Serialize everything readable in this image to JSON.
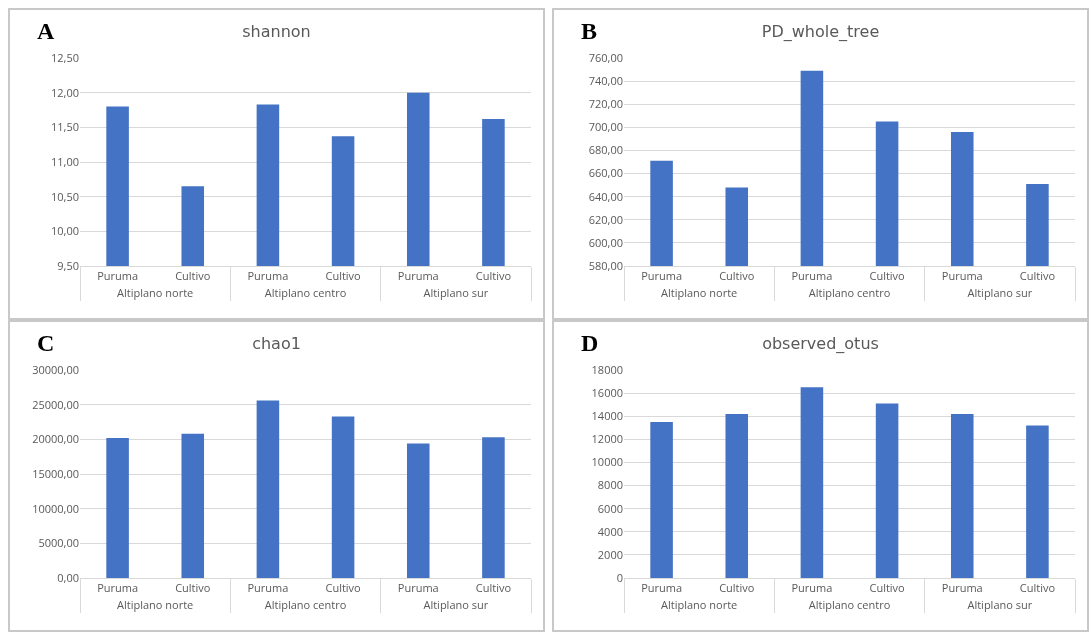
{
  "chart_data": [
    {
      "type": "bar",
      "title": "shannon",
      "annotations": [
        "A",
        "Altiplano norte",
        "Altiplano centro",
        "Altiplano sur"
      ],
      "categories": [
        "Puruma",
        "Cultivo",
        "Puruma",
        "Cultivo",
        "Puruma",
        "Cultivo"
      ],
      "values": [
        11.8,
        10.65,
        11.83,
        11.37,
        12.0,
        11.62
      ],
      "color": "#4472c4",
      "ylim": [
        9.5,
        12.5
      ],
      "yticks": [
        {
          "value": 9.5,
          "label": "9,50"
        },
        {
          "value": 10,
          "label": "10,00"
        },
        {
          "value": 10.5,
          "label": "10,50"
        },
        {
          "value": 11,
          "label": "11,00"
        },
        {
          "value": 11.5,
          "label": "11,50"
        },
        {
          "value": 12,
          "label": "12,00"
        },
        {
          "value": 12.5,
          "label": "12,50"
        }
      ],
      "grid": "y"
    },
    {
      "type": "bar",
      "title": "PD_whole_tree",
      "annotations": [
        "B",
        "Altiplano norte",
        "Altiplano centro",
        "Altiplano sur"
      ],
      "categories": [
        "Puruma",
        "Cultivo",
        "Puruma",
        "Cultivo",
        "Puruma",
        "Cultivo"
      ],
      "values": [
        671,
        648,
        749,
        705,
        696,
        651
      ],
      "color": "#4472c4",
      "ylim": [
        580,
        760
      ],
      "yticks": [
        {
          "value": 580,
          "label": "580,00"
        },
        {
          "value": 600,
          "label": "600,00"
        },
        {
          "value": 620,
          "label": "620,00"
        },
        {
          "value": 640,
          "label": "640,00"
        },
        {
          "value": 660,
          "label": "660,00"
        },
        {
          "value": 680,
          "label": "680,00"
        },
        {
          "value": 700,
          "label": "700,00"
        },
        {
          "value": 720,
          "label": "720,00"
        },
        {
          "value": 740,
          "label": "740,00"
        },
        {
          "value": 760,
          "label": "760,00"
        }
      ],
      "grid": "y"
    },
    {
      "type": "bar",
      "title": "chao1",
      "annotations": [
        "C",
        "Altiplano norte",
        "Altiplano centro",
        "Altiplano sur"
      ],
      "categories": [
        "Puruma",
        "Cultivo",
        "Puruma",
        "Cultivo",
        "Puruma",
        "Cultivo"
      ],
      "values": [
        20200,
        20800,
        25600,
        23300,
        19400,
        20300
      ],
      "color": "#4472c4",
      "ylim": [
        0,
        30000
      ],
      "yticks": [
        {
          "value": 0,
          "label": "0,00"
        },
        {
          "value": 5000,
          "label": "5000,00"
        },
        {
          "value": 10000,
          "label": "10000,00"
        },
        {
          "value": 15000,
          "label": "15000,00"
        },
        {
          "value": 20000,
          "label": "20000,00"
        },
        {
          "value": 25000,
          "label": "25000,00"
        },
        {
          "value": 30000,
          "label": "30000,00"
        }
      ],
      "grid": "y"
    },
    {
      "type": "bar",
      "title": "observed_otus",
      "annotations": [
        "D",
        "Altiplano norte",
        "Altiplano centro",
        "Altiplano sur"
      ],
      "categories": [
        "Puruma",
        "Cultivo",
        "Puruma",
        "Cultivo",
        "Puruma",
        "Cultivo"
      ],
      "values": [
        13500,
        14200,
        16500,
        15100,
        14200,
        13200
      ],
      "color": "#4472c4",
      "ylim": [
        0,
        18000
      ],
      "yticks": [
        0,
        2000,
        4000,
        6000,
        8000,
        10000,
        12000,
        14000,
        16000,
        18000
      ],
      "grid": "y"
    }
  ]
}
